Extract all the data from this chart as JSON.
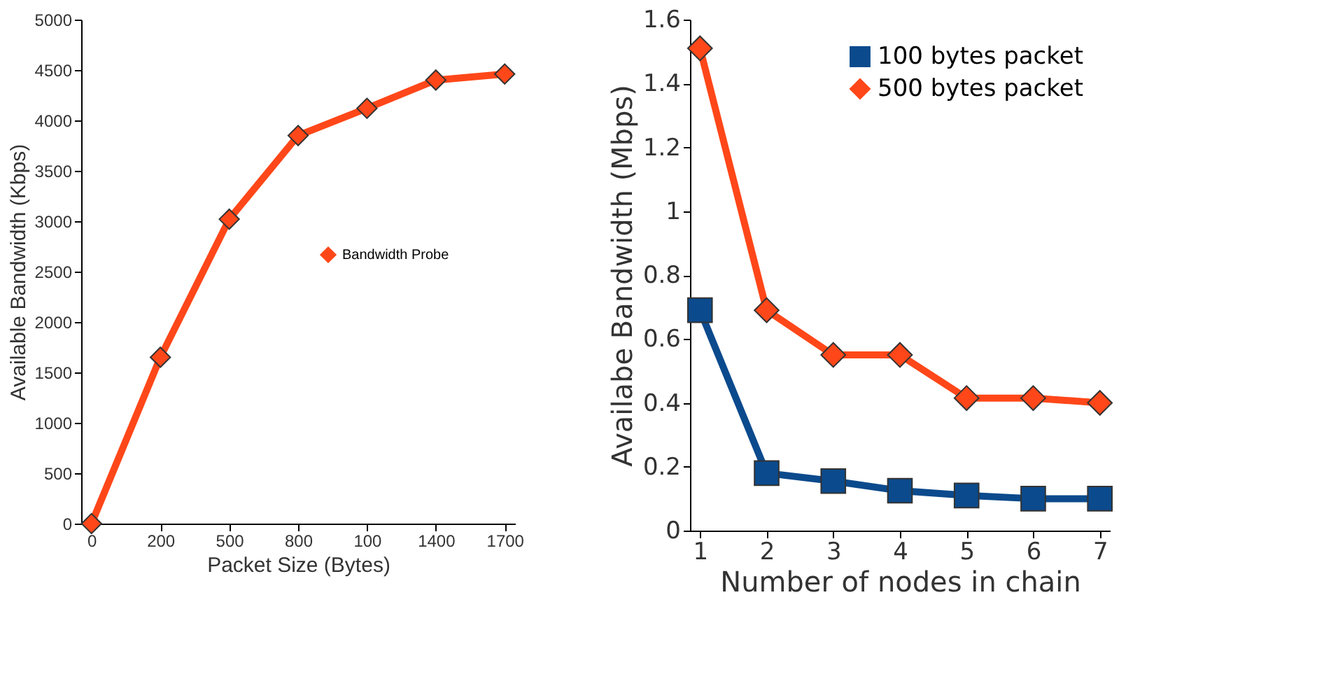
{
  "chart_data": [
    {
      "type": "line",
      "xlabel": "Packet Size (Bytes)",
      "ylabel": "Available Bandwidth (Kbps)",
      "categories": [
        "0",
        "200",
        "500",
        "800",
        "100",
        "1400",
        "1700"
      ],
      "series": [
        {
          "name": "Bandwidth Probe",
          "color": "#ff4719",
          "marker": "diamond",
          "values": [
            0,
            1650,
            3020,
            3850,
            4120,
            4400,
            4460
          ]
        }
      ],
      "ylim": [
        0,
        5000
      ],
      "yticks": [
        0,
        500,
        1000,
        1500,
        2000,
        2500,
        3000,
        3500,
        4000,
        4500,
        5000
      ],
      "grid": false,
      "legend": "center"
    },
    {
      "type": "line",
      "xlabel": "Number of nodes in chain",
      "ylabel": "Availabe Bandwidth (Mbps)",
      "categories": [
        "1",
        "2",
        "3",
        "4",
        "5",
        "6",
        "7"
      ],
      "series": [
        {
          "name": "100 bytes packet",
          "color": "#0b4a8c",
          "marker": "square",
          "values": [
            0.69,
            0.18,
            0.155,
            0.125,
            0.11,
            0.1,
            0.1
          ]
        },
        {
          "name": "500 bytes packet",
          "color": "#ff4719",
          "marker": "diamond",
          "values": [
            1.51,
            0.69,
            0.55,
            0.55,
            0.415,
            0.415,
            0.4
          ]
        }
      ],
      "ylim": [
        0,
        1.6
      ],
      "yticks": [
        0,
        0.2,
        0.4,
        0.6,
        0.8,
        1,
        1.2,
        1.4,
        1.6
      ],
      "grid": false,
      "legend": "top right"
    }
  ]
}
